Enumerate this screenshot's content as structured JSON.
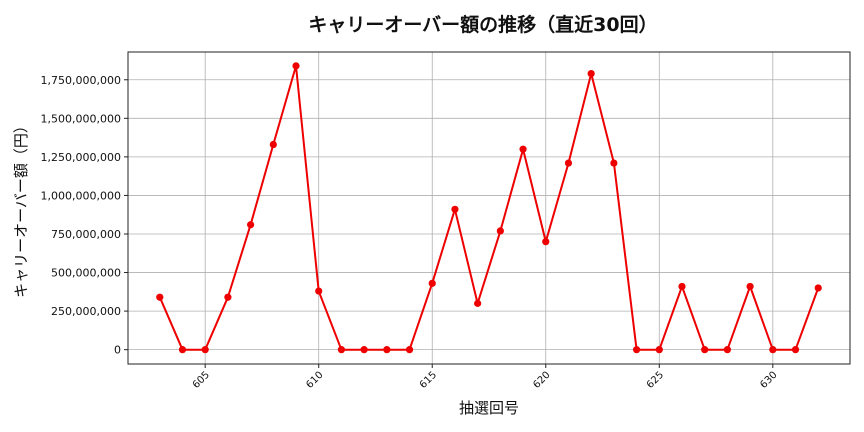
{
  "chart_data": {
    "type": "line",
    "title": "キャリーオーバー額の推移（直近30回）",
    "xlabel": "抽選回号",
    "ylabel": "キャリーオーバー額（円）",
    "x": [
      603,
      604,
      605,
      606,
      607,
      608,
      609,
      610,
      611,
      612,
      613,
      614,
      615,
      616,
      617,
      618,
      619,
      620,
      621,
      622,
      623,
      624,
      625,
      626,
      627,
      628,
      629,
      630,
      631,
      632
    ],
    "series": [
      {
        "values": [
          340000000,
          0,
          0,
          340000000,
          810000000,
          1330000000,
          1840000000,
          380000000,
          0,
          0,
          0,
          0,
          430000000,
          910000000,
          300000000,
          770000000,
          1300000000,
          700000000,
          1210000000,
          1790000000,
          1210000000,
          0,
          0,
          410000000,
          0,
          0,
          410000000,
          0,
          0,
          400000000
        ],
        "color": "#ee0000",
        "marker": "circle"
      }
    ],
    "xticks": [
      605,
      610,
      615,
      620,
      625,
      630
    ],
    "xtick_labels": [
      "605",
      "610",
      "615",
      "620",
      "625",
      "630"
    ],
    "yticks": [
      0,
      250000000,
      500000000,
      750000000,
      1000000000,
      1250000000,
      1500000000,
      1750000000
    ],
    "ytick_labels": [
      "0",
      "250,000,000",
      "500,000,000",
      "750,000,000",
      "1,000,000,000",
      "1,250,000,000",
      "1,500,000,000",
      "1,750,000,000"
    ],
    "xlim": [
      601.6,
      633.4
    ],
    "ylim": [
      -93000000,
      1930000000
    ],
    "grid": true,
    "legend": false
  }
}
